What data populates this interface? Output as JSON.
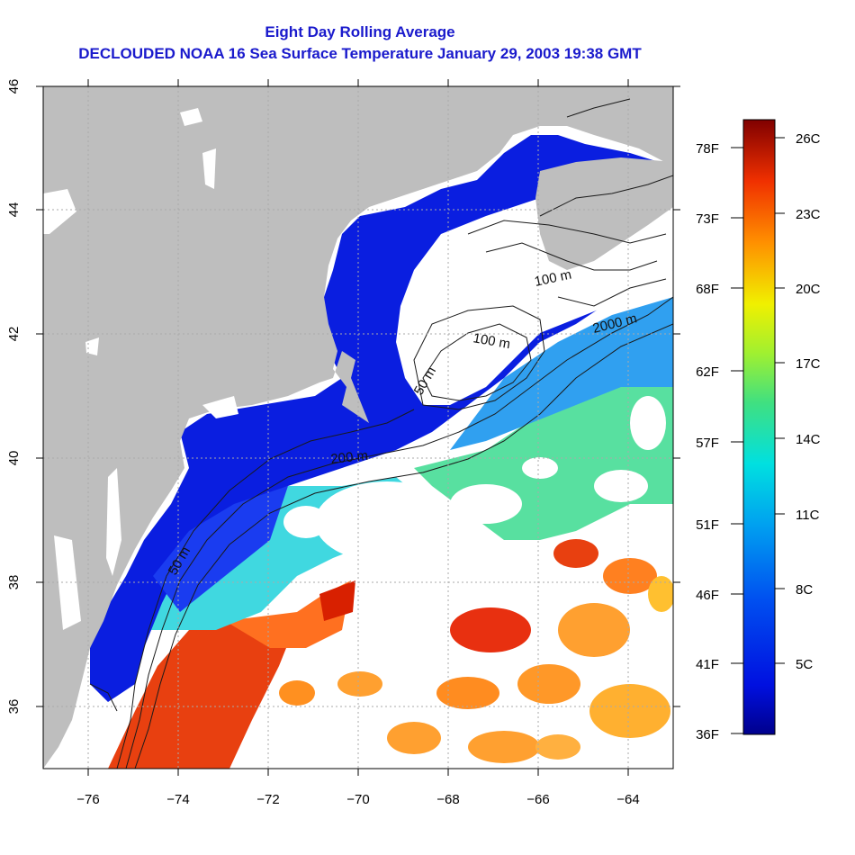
{
  "title": {
    "line1": "Eight Day Rolling Average",
    "line2": "DECLOUDED NOAA 16 Sea Surface Temperature January 29, 2003 19:38 GMT"
  },
  "map": {
    "lon_range": [
      -77,
      -63
    ],
    "lat_range": [
      35,
      46
    ],
    "x_ticks": [
      "−76",
      "−74",
      "−72",
      "−70",
      "−68",
      "−66",
      "−64"
    ],
    "y_ticks": [
      "36",
      "38",
      "40",
      "42",
      "44",
      "46"
    ],
    "contour_labels": [
      "100 m",
      "100 m",
      "2000 m",
      "50 m",
      "200 m",
      "50 m"
    ],
    "colors": {
      "land": "#bebebe",
      "cloud": "#ffffff",
      "cold": "#0010d0",
      "warm": "#e02000"
    }
  },
  "colorbar": {
    "celsius_labels": [
      "26C",
      "23C",
      "20C",
      "17C",
      "14C",
      "11C",
      "8C",
      "5C"
    ],
    "fahrenheit_labels": [
      "78F",
      "73F",
      "68F",
      "62F",
      "57F",
      "51F",
      "46F",
      "41F",
      "36F"
    ]
  }
}
